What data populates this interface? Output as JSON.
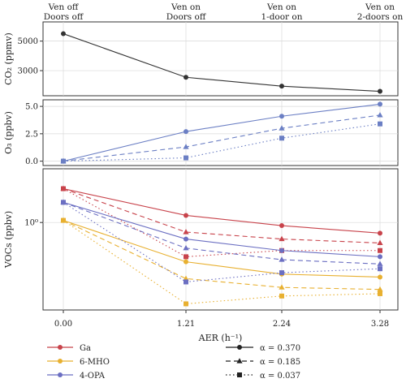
{
  "chart_data": {
    "type": "line",
    "x_categories": [
      "0.00",
      "1.21",
      "2.24",
      "3.28"
    ],
    "x": [
      0.0,
      1.21,
      2.24,
      3.28
    ],
    "xlabel": "AER (h⁻¹)",
    "top_labels": [
      [
        "Ven off",
        "Doors off"
      ],
      [
        "Ven on",
        "Doors off"
      ],
      [
        "Ven on",
        "1-door on"
      ],
      [
        "Ven on",
        "2-doors on"
      ]
    ],
    "panels": [
      {
        "ylabel": "CO₂ (ppmv)",
        "yticks": [
          "5000",
          "3000"
        ],
        "ytick_values": [
          5000,
          3000
        ],
        "ylim": [
          1300,
          6300
        ],
        "series": [
          {
            "values": [
              5500,
              2550,
              1950,
              1600
            ],
            "color": "#333333",
            "dash": "solid",
            "marker": "circle"
          }
        ]
      },
      {
        "ylabel": "O₃ (ppbv)",
        "yticks": [
          "5.0",
          "2.5",
          "0.0"
        ],
        "ytick_values": [
          5.0,
          2.5,
          0.0
        ],
        "ylim": [
          -0.4,
          5.6
        ],
        "series": [
          {
            "values": [
              0.0,
              2.7,
              4.1,
              5.2
            ],
            "color": "#6b7fc4",
            "dash": "solid",
            "marker": "circle"
          },
          {
            "values": [
              0.0,
              1.3,
              3.0,
              4.2
            ],
            "color": "#6b7fc4",
            "dash": "dashed",
            "marker": "triangle"
          },
          {
            "values": [
              0.0,
              0.3,
              2.1,
              3.4
            ],
            "color": "#6b7fc4",
            "dash": "dotted",
            "marker": "square"
          }
        ]
      },
      {
        "ylabel": "VOCs (ppbv)",
        "yticks": [
          "10⁰"
        ],
        "ytick_values": [
          1.0
        ],
        "log": true,
        "ylim": [
          0.13,
          3.5
        ],
        "series": [
          {
            "compound": "Ga",
            "values": [
              2.2,
              1.18,
              0.93,
              0.78
            ],
            "color": "#c8434b",
            "dash": "solid",
            "marker": "circle"
          },
          {
            "compound": "Ga",
            "values": [
              2.2,
              0.8,
              0.68,
              0.62
            ],
            "color": "#c8434b",
            "dash": "dashed",
            "marker": "triangle"
          },
          {
            "compound": "Ga",
            "values": [
              2.2,
              0.45,
              0.52,
              0.52
            ],
            "color": "#c8434b",
            "dash": "dotted",
            "marker": "square"
          },
          {
            "compound": "6-MHO",
            "values": [
              1.05,
              0.4,
              0.3,
              0.28
            ],
            "color": "#e8b030",
            "dash": "solid",
            "marker": "circle"
          },
          {
            "compound": "6-MHO",
            "values": [
              1.05,
              0.27,
              0.22,
              0.21
            ],
            "color": "#e8b030",
            "dash": "dashed",
            "marker": "triangle"
          },
          {
            "compound": "6-MHO",
            "values": [
              1.05,
              0.15,
              0.18,
              0.19
            ],
            "color": "#e8b030",
            "dash": "dotted",
            "marker": "square"
          },
          {
            "compound": "4-OPA",
            "values": [
              1.6,
              0.68,
              0.52,
              0.45
            ],
            "color": "#6b6fc2",
            "dash": "solid",
            "marker": "circle"
          },
          {
            "compound": "4-OPA",
            "values": [
              1.6,
              0.55,
              0.42,
              0.38
            ],
            "color": "#6b6fc2",
            "dash": "dashed",
            "marker": "triangle"
          },
          {
            "compound": "4-OPA",
            "values": [
              1.6,
              0.25,
              0.31,
              0.34
            ],
            "color": "#6b6fc2",
            "dash": "dotted",
            "marker": "square"
          }
        ]
      }
    ],
    "legend": {
      "placement": "bottom",
      "compounds": [
        {
          "label": "Ga",
          "color": "#c8434b"
        },
        {
          "label": "6-MHO",
          "color": "#e8b030"
        },
        {
          "label": "4-OPA",
          "color": "#6b6fc2"
        }
      ],
      "alphas": [
        {
          "label": "α = 0.370",
          "dash": "solid",
          "marker": "circle"
        },
        {
          "label": "α = 0.185",
          "dash": "dashed",
          "marker": "triangle"
        },
        {
          "label": "α = 0.037",
          "dash": "dotted",
          "marker": "square"
        }
      ]
    }
  }
}
